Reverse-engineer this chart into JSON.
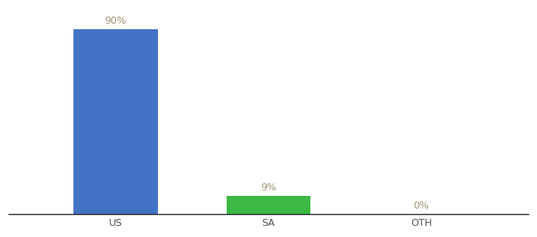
{
  "categories": [
    "US",
    "SA",
    "OTH"
  ],
  "values": [
    90,
    9,
    0
  ],
  "bar_colors": [
    "#4472c4",
    "#3cb844",
    "#4472c4"
  ],
  "label_color": "#a09878",
  "labels": [
    "90%",
    "9%",
    "0%"
  ],
  "ylim": [
    0,
    100
  ],
  "background_color": "#ffffff",
  "tick_color": "#555555",
  "bar_width": 0.55,
  "figsize": [
    6.8,
    3.0
  ],
  "dpi": 100,
  "label_fontsize": 9,
  "tick_fontsize": 9
}
